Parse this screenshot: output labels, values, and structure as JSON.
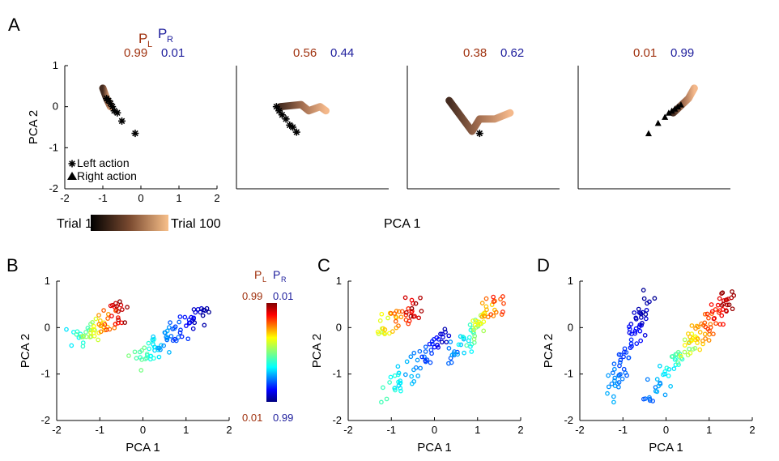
{
  "colors": {
    "pl": "#a0320f",
    "pr": "#1d1d9c"
  },
  "panels": {
    "A": "A",
    "B": "B",
    "C": "C",
    "D": "D"
  },
  "symbols": {
    "P": "P",
    "L": "L",
    "R": "R"
  },
  "panelA": {
    "probabilities": [
      {
        "pl": "0.99",
        "pr": "0.01"
      },
      {
        "pl": "0.56",
        "pr": "0.44"
      },
      {
        "pl": "0.38",
        "pr": "0.62"
      },
      {
        "pl": "0.01",
        "pr": "0.99"
      }
    ],
    "legend": {
      "left": "Left action",
      "right": "Right action"
    },
    "trial_bar": {
      "start": "Trial 1",
      "end": "Trial 100"
    },
    "xlabel": "PCA 1",
    "ylabel": "PCA 2"
  },
  "colorbar": {
    "top_pl": "0.99",
    "top_pr": "0.01",
    "bottom_pl": "0.01",
    "bottom_pr": "0.99"
  },
  "chart_data": [
    {
      "id": "A1",
      "type": "scatter",
      "xlim": [
        -2,
        2
      ],
      "ylim": [
        -2,
        1
      ],
      "xticks": [
        -2,
        -1,
        0,
        1,
        2
      ],
      "yticks": [
        -2,
        -1,
        0,
        1
      ],
      "xlabel": "",
      "ylabel": "PCA 2",
      "trajectory": [
        [
          -1.0,
          0.45
        ],
        [
          -0.9,
          0.2
        ],
        [
          -0.8,
          0.0
        ]
      ],
      "left_action": [
        [
          -0.9,
          0.2
        ],
        [
          -0.85,
          0.15
        ],
        [
          -0.8,
          0.08
        ],
        [
          -0.75,
          0.0
        ],
        [
          -0.7,
          -0.1
        ],
        [
          -0.62,
          -0.15
        ],
        [
          -0.5,
          -0.35
        ],
        [
          -0.15,
          -0.65
        ]
      ],
      "right_action": []
    },
    {
      "id": "A2",
      "type": "scatter",
      "xlim": [
        -2,
        2
      ],
      "ylim": [
        -2,
        1
      ],
      "trajectory": [
        [
          -0.85,
          0.0
        ],
        [
          -0.3,
          0.05
        ],
        [
          -0.1,
          -0.1
        ],
        [
          0.2,
          0.0
        ],
        [
          0.35,
          -0.1
        ]
      ],
      "left_action": [
        [
          -0.95,
          0.0
        ],
        [
          -0.88,
          -0.1
        ],
        [
          -0.8,
          -0.2
        ],
        [
          -0.7,
          -0.3
        ],
        [
          -0.6,
          -0.45
        ],
        [
          -0.52,
          -0.5
        ],
        [
          -0.42,
          -0.62
        ]
      ],
      "right_action": []
    },
    {
      "id": "A3",
      "type": "scatter",
      "xlim": [
        -2,
        2
      ],
      "ylim": [
        -2,
        1
      ],
      "trajectory": [
        [
          -0.9,
          0.15
        ],
        [
          -0.3,
          -0.6
        ],
        [
          -0.1,
          -0.3
        ],
        [
          0.3,
          -0.3
        ],
        [
          0.7,
          -0.15
        ]
      ],
      "left_action": [
        [
          -0.1,
          -0.65
        ]
      ],
      "right_action": []
    },
    {
      "id": "A4",
      "type": "scatter",
      "xlim": [
        -2,
        2
      ],
      "ylim": [
        -2,
        1
      ],
      "trajectory": [
        [
          0.5,
          -0.15
        ],
        [
          0.9,
          0.2
        ],
        [
          1.05,
          0.45
        ]
      ],
      "left_action": [],
      "right_action": [
        [
          -0.15,
          -0.65
        ],
        [
          0.1,
          -0.4
        ],
        [
          0.28,
          -0.25
        ],
        [
          0.38,
          -0.15
        ],
        [
          0.46,
          -0.1
        ],
        [
          0.54,
          -0.05
        ],
        [
          0.62,
          0.0
        ],
        [
          0.7,
          0.05
        ]
      ]
    },
    {
      "id": "B",
      "type": "scatter",
      "xlim": [
        -2,
        2
      ],
      "ylim": [
        -2,
        1
      ],
      "xticks": [
        -2,
        -1,
        0,
        1,
        2
      ],
      "yticks": [
        -2,
        -1,
        0,
        1
      ],
      "xlabel": "PCA 1",
      "ylabel": "PCA 2",
      "color_by": "P_L",
      "clusters": [
        {
          "x0": -1.6,
          "y0": -0.25,
          "x1": -0.4,
          "y1": 0.35,
          "pl_start": 0.35,
          "pl_end": 0.99,
          "n": 70
        },
        {
          "x0": -0.2,
          "y0": -0.7,
          "x1": 1.4,
          "y1": 0.3,
          "pl_start": 0.5,
          "pl_end": 0.02,
          "n": 80
        }
      ]
    },
    {
      "id": "C",
      "type": "scatter",
      "xlim": [
        -2,
        2
      ],
      "ylim": [
        -2,
        1
      ],
      "xticks": [
        -2,
        -1,
        0,
        1,
        2
      ],
      "yticks": [
        -2,
        -1,
        0,
        1
      ],
      "xlabel": "PCA 1",
      "ylabel": "PCA 2",
      "color_by": "P_L",
      "clusters": [
        {
          "x0": -1.3,
          "y0": 0.0,
          "x1": -0.4,
          "y1": 0.5,
          "pl_start": 0.55,
          "pl_end": 0.99,
          "n": 45
        },
        {
          "x0": -1.1,
          "y0": -1.4,
          "x1": 0.3,
          "y1": -0.1,
          "pl_start": 0.45,
          "pl_end": 0.05,
          "n": 60
        },
        {
          "x0": 0.4,
          "y0": -0.6,
          "x1": 1.5,
          "y1": 0.6,
          "pl_start": 0.2,
          "pl_end": 0.85,
          "n": 70
        }
      ]
    },
    {
      "id": "D",
      "type": "scatter",
      "xlim": [
        -2,
        2
      ],
      "ylim": [
        -2,
        1
      ],
      "xticks": [
        -2,
        -1,
        0,
        1,
        2
      ],
      "yticks": [
        -2,
        -1,
        0,
        1
      ],
      "xlabel": "PCA 1",
      "ylabel": "PCA 2",
      "color_by": "P_L",
      "clusters": [
        {
          "x0": -1.3,
          "y0": -1.4,
          "x1": -0.4,
          "y1": 0.6,
          "pl_start": 0.3,
          "pl_end": 0.02,
          "n": 70
        },
        {
          "x0": -0.4,
          "y0": -1.5,
          "x1": 0.6,
          "y1": -0.3,
          "pl_start": 0.2,
          "pl_end": 0.55,
          "n": 45
        },
        {
          "x0": 0.5,
          "y0": -0.4,
          "x1": 1.5,
          "y1": 0.65,
          "pl_start": 0.6,
          "pl_end": 0.99,
          "n": 70
        }
      ]
    }
  ]
}
